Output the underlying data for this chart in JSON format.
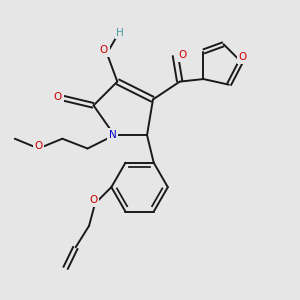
{
  "background_color": "#e6e6e6",
  "fig_size": [
    3.0,
    3.0
  ],
  "dpi": 100,
  "bond_color": "#1a1a1a",
  "bond_width": 1.4,
  "atom_colors": {
    "O": "#cc0000",
    "N": "#0000cc",
    "H": "#4a9a9a",
    "C": "#1a1a1a"
  },
  "font_size": 7.5,
  "xlim": [
    0,
    10
  ],
  "ylim": [
    0,
    10
  ]
}
